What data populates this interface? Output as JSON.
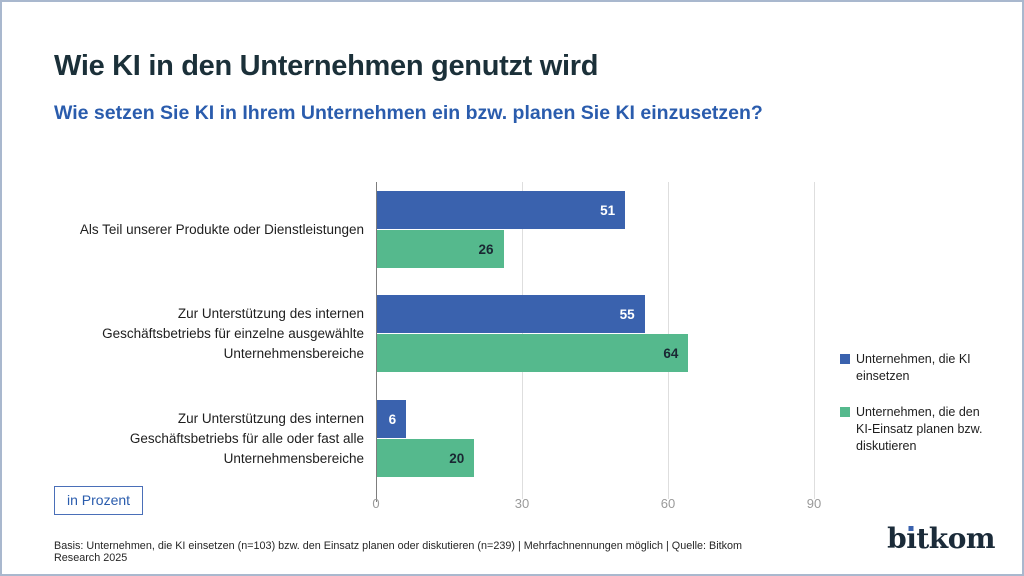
{
  "header": {
    "title": "Wie KI in den Unternehmen genutzt wird",
    "subtitle": "Wie setzen Sie KI in Ihrem Unternehmen ein bzw. planen Sie KI einzusetzen?"
  },
  "chart_data": {
    "type": "bar",
    "orientation": "horizontal",
    "unit": "Prozent",
    "title": "Wie KI in den Unternehmen genutzt wird",
    "categories": [
      "Als Teil unserer Produkte oder Dienstleistungen",
      "Zur Unterstützung des internen Geschäftsbetriebs für einzelne ausgewählte Unternehmensbereiche",
      "Zur Unterstützung des internen Geschäftsbetriebs für alle oder fast alle Unternehmensbereiche"
    ],
    "category_lines": [
      [
        "Als Teil unserer Produkte oder Dienstleistungen"
      ],
      [
        "Zur Unterstützung des internen",
        "Geschäftsbetriebs für einzelne ausgewählte",
        "Unternehmensbereiche"
      ],
      [
        "Zur Unterstützung des internen",
        "Geschäftsbetriebs für alle oder fast alle",
        "Unternehmensbereiche"
      ]
    ],
    "series": [
      {
        "name": "Unternehmen, die KI einsetzen",
        "color": "#3a62ae",
        "label_color": "#ffffff",
        "values": [
          51,
          55,
          6
        ]
      },
      {
        "name": "Unternehmen, die den KI-Einsatz planen bzw. diskutieren",
        "color": "#55b98d",
        "label_color": "#1a2733",
        "values": [
          26,
          64,
          20
        ]
      }
    ],
    "xlim": [
      0,
      90
    ],
    "xticks": [
      0,
      30,
      60,
      90
    ],
    "grid": true,
    "legend_position": "right"
  },
  "unit_label": "in Prozent",
  "footer": {
    "source": "Basis: Unternehmen, die KI einsetzen (n=103) bzw. den Einsatz planen oder diskutieren (n=239) | Mehrfachnennungen möglich | Quelle: Bitkom Research 2025",
    "logo": {
      "prefix": "b",
      "i_dotless": "ı",
      "suffix": "tkom"
    }
  },
  "colors": {
    "title": "#1b3039",
    "subtitle": "#2a5cad",
    "bar_blue": "#3a62ae",
    "bar_green": "#55b98d",
    "frame_border": "#a9b8ce",
    "gridline": "#dedede",
    "axis_line": "#7d7d7d",
    "tick_label": "#9a9a9a",
    "logo_dot": "#3a62ae"
  }
}
